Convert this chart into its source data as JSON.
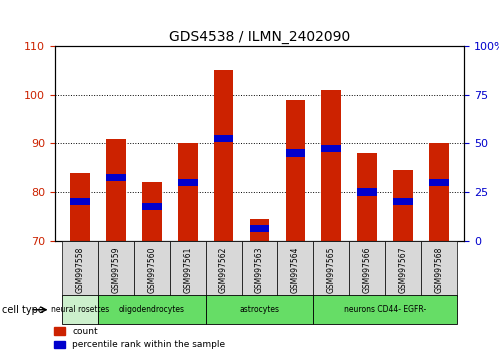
{
  "title": "GDS4538 / ILMN_2402090",
  "samples": [
    "GSM997558",
    "GSM997559",
    "GSM997560",
    "GSM997561",
    "GSM997562",
    "GSM997563",
    "GSM997564",
    "GSM997565",
    "GSM997566",
    "GSM997567",
    "GSM997568"
  ],
  "count_values": [
    84,
    91,
    82,
    90,
    105,
    74.5,
    99,
    101,
    88,
    84.5,
    90
  ],
  "percentile_values": [
    78,
    83,
    77,
    82,
    91,
    72.5,
    88,
    89,
    80,
    78,
    82
  ],
  "ylim_left": [
    70,
    110
  ],
  "ylim_right": [
    0,
    100
  ],
  "right_ticks": [
    0,
    25,
    50,
    75,
    100
  ],
  "right_tick_labels": [
    "0",
    "25",
    "50",
    "75",
    "100%"
  ],
  "left_ticks": [
    70,
    80,
    90,
    100,
    110
  ],
  "bar_color": "#cc2200",
  "percentile_color": "#0000cc",
  "bar_width": 0.55,
  "background_color": "#ffffff",
  "tick_label_color_left": "#cc2200",
  "tick_label_color_right": "#0000cc",
  "groups": [
    {
      "label": "neural rosettes",
      "start": 0,
      "end": 0,
      "color": "#ccf0cc"
    },
    {
      "label": "oligodendrocytes",
      "start": 1,
      "end": 3,
      "color": "#66dd66"
    },
    {
      "label": "astrocytes",
      "start": 4,
      "end": 6,
      "color": "#66dd66"
    },
    {
      "label": "neurons CD44- EGFR-",
      "start": 7,
      "end": 10,
      "color": "#66dd66"
    }
  ]
}
